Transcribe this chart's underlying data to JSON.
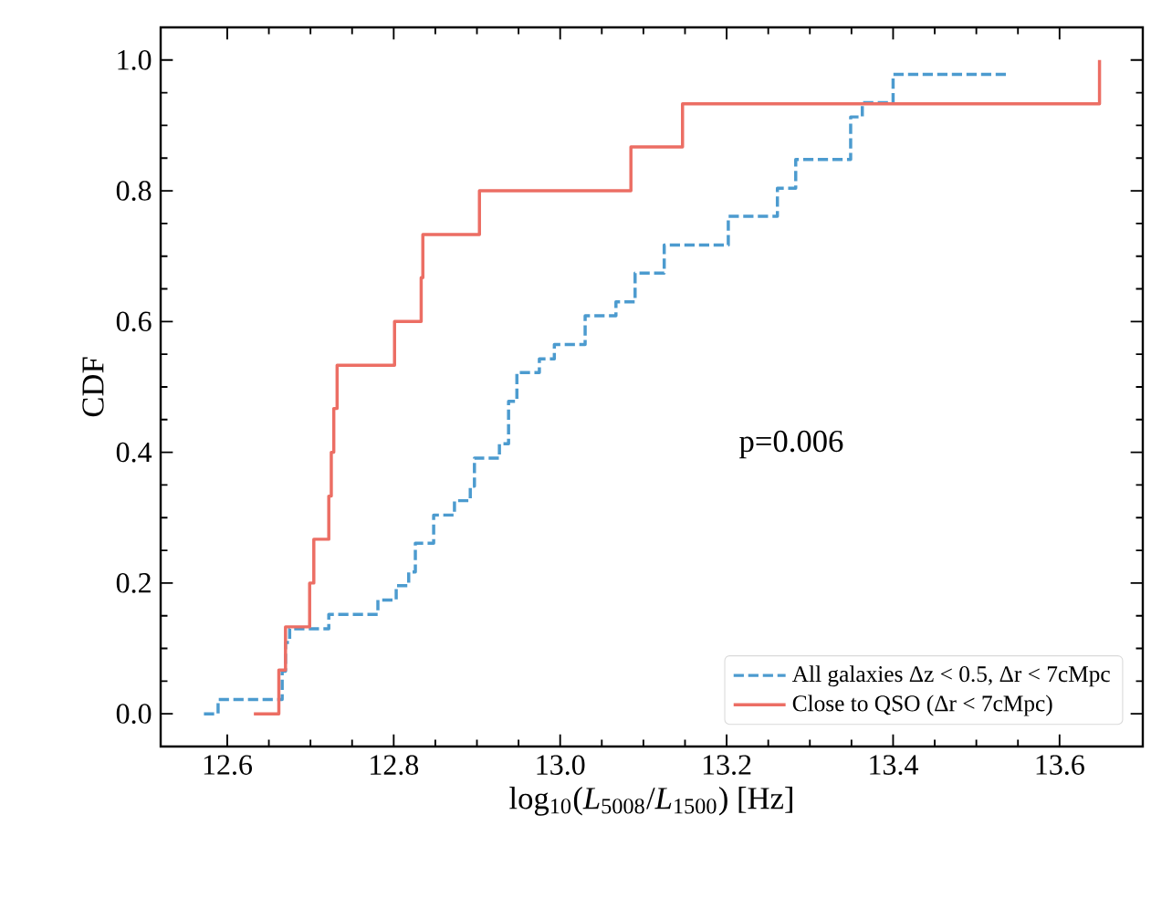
{
  "chart_data": {
    "type": "step",
    "xlabel": "log$_{10}$(*L*$_{5008}$/*L*$_{1500}$) [Hz]",
    "ylabel": "CDF",
    "annotations": [
      "p=0.006"
    ],
    "xlim": [
      12.52,
      13.7
    ],
    "ylim": [
      -0.05,
      1.05
    ],
    "xticks": [
      12.6,
      12.8,
      {
        "value": 13.0,
        "label": "13.0"
      },
      13.2,
      13.4,
      13.6
    ],
    "yticks": [
      {
        "value": 0,
        "label": "0.0"
      },
      0.2,
      0.4,
      0.6,
      0.8,
      {
        "value": 1.0,
        "label": "1.0"
      }
    ],
    "legend": "bottom right",
    "grid": false,
    "series": [
      {
        "name": "All galaxies Δz < 0.5, Δr < 7cMpc",
        "color": "#4c9bcf",
        "line_style": "dashed",
        "x": [
          12.572,
          12.589,
          12.666,
          12.67,
          12.675,
          12.722,
          12.781,
          12.803,
          12.818,
          12.826,
          12.848,
          12.873,
          12.892,
          12.897,
          12.927,
          12.938,
          12.948,
          12.975,
          12.993,
          13.03,
          13.067,
          13.09,
          13.125,
          13.202,
          13.261,
          13.283,
          13.349,
          13.363,
          13.4,
          13.536
        ],
        "values": [
          0,
          0.022,
          0.065,
          0.109,
          0.13,
          0.152,
          0.174,
          0.196,
          0.217,
          0.261,
          0.304,
          0.326,
          0.348,
          0.391,
          0.413,
          0.478,
          0.522,
          0.543,
          0.565,
          0.609,
          0.63,
          0.674,
          0.717,
          0.761,
          0.804,
          0.848,
          0.913,
          0.935,
          0.978,
          0.978
        ]
      },
      {
        "name": "Close to QSO (Δr < 7cMpc)",
        "color": "#ec6e64",
        "line_style": "solid",
        "x": [
          12.632,
          12.662,
          12.67,
          12.699,
          12.704,
          12.722,
          12.725,
          12.728,
          12.732,
          12.801,
          12.833,
          12.835,
          12.903,
          13.085,
          13.147,
          13.648
        ],
        "values": [
          0,
          0.067,
          0.133,
          0.2,
          0.267,
          0.333,
          0.4,
          0.467,
          0.533,
          0.6,
          0.667,
          0.733,
          0.8,
          0.867,
          0.933,
          1.0
        ]
      }
    ]
  }
}
